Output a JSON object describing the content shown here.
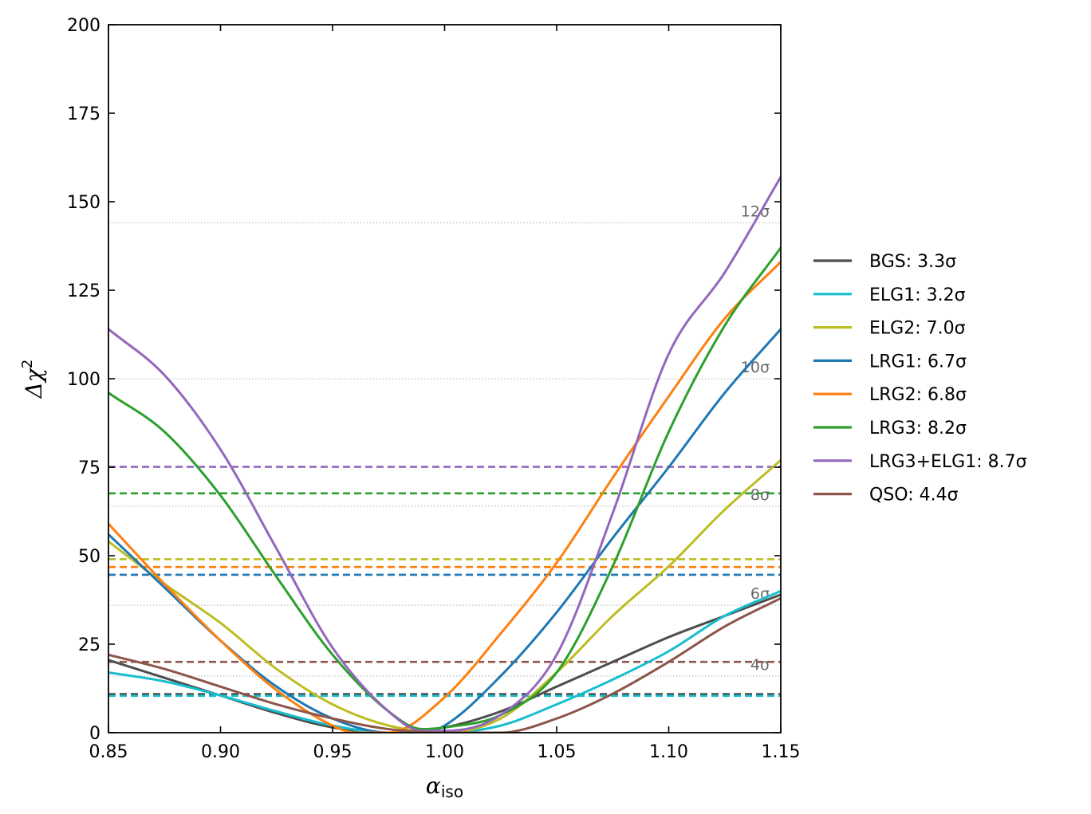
{
  "chart_data": {
    "type": "line",
    "xlabel": "α_iso",
    "xlabel_main": "α",
    "xlabel_sub": "iso",
    "ylabel": "Δχ²",
    "ylabel_main": "Δχ",
    "ylabel_sup": "2",
    "xlim": [
      0.85,
      1.15
    ],
    "ylim": [
      0,
      200
    ],
    "x_ticks": [
      "0.85",
      "0.90",
      "0.95",
      "1.00",
      "1.05",
      "1.10",
      "1.15"
    ],
    "x_tick_values": [
      0.85,
      0.9,
      0.95,
      1.0,
      1.05,
      1.1,
      1.15
    ],
    "y_ticks": [
      "0",
      "25",
      "50",
      "75",
      "100",
      "125",
      "150",
      "175",
      "200"
    ],
    "y_tick_values": [
      0,
      25,
      50,
      75,
      100,
      125,
      150,
      175,
      200
    ],
    "legend_position": "right-outside",
    "sigma_reference_lines": [
      {
        "label": "4σ",
        "value": 16
      },
      {
        "label": "6σ",
        "value": 36
      },
      {
        "label": "8σ",
        "value": 64
      },
      {
        "label": "10σ",
        "value": 100
      },
      {
        "label": "12σ",
        "value": 144
      }
    ],
    "series": [
      {
        "name": "BGS: 3.3σ",
        "color": "#4d4d4d",
        "threshold": 10.9,
        "x": [
          0.85,
          0.875,
          0.9,
          0.925,
          0.95,
          0.975,
          1.0,
          1.025,
          1.05,
          1.075,
          1.1,
          1.125,
          1.15
        ],
        "y": [
          20.5,
          15.5,
          10.5,
          5.5,
          1.5,
          0,
          1.5,
          6,
          13,
          20,
          27,
          33,
          39
        ]
      },
      {
        "name": "ELG1: 3.2σ",
        "color": "#17becf",
        "threshold": 10.4,
        "x": [
          0.85,
          0.875,
          0.9,
          0.925,
          0.95,
          0.975,
          1.0,
          1.025,
          1.05,
          1.075,
          1.1,
          1.125,
          1.15
        ],
        "y": [
          17,
          14.5,
          10.5,
          6,
          2,
          0,
          0,
          2,
          8,
          15,
          23,
          33,
          40
        ]
      },
      {
        "name": "ELG2: 7.0σ",
        "color": "#bcbd22",
        "threshold": 49,
        "x": [
          0.85,
          0.875,
          0.9,
          0.925,
          0.95,
          0.975,
          1.0,
          1.025,
          1.05,
          1.075,
          1.1,
          1.125,
          1.15
        ],
        "y": [
          54,
          42,
          31,
          18,
          8,
          2,
          0,
          4,
          17,
          33,
          47,
          63,
          77
        ]
      },
      {
        "name": "LRG1: 6.7σ",
        "color": "#1f77b4",
        "threshold": 44.6,
        "x": [
          0.85,
          0.875,
          0.9,
          0.925,
          0.95,
          0.975,
          0.99,
          1.0,
          1.025,
          1.05,
          1.075,
          1.1,
          1.125,
          1.15
        ],
        "y": [
          56,
          41,
          26,
          13,
          4,
          0,
          0,
          2,
          16,
          34,
          55,
          75,
          96,
          114
        ]
      },
      {
        "name": "LRG2: 6.8σ",
        "color": "#ff7f0e",
        "threshold": 46.8,
        "x": [
          0.85,
          0.875,
          0.9,
          0.925,
          0.95,
          0.96,
          0.975,
          1.0,
          1.025,
          1.05,
          1.075,
          1.1,
          1.125,
          1.15
        ],
        "y": [
          59,
          42,
          26,
          12,
          2,
          0,
          0,
          10,
          28,
          48,
          72,
          95,
          117,
          133
        ]
      },
      {
        "name": "LRG3: 8.2σ",
        "color": "#2ca02c",
        "threshold": 67.6,
        "x": [
          0.85,
          0.875,
          0.9,
          0.925,
          0.95,
          0.975,
          0.99,
          1.0,
          1.025,
          1.05,
          1.075,
          1.1,
          1.125,
          1.15
        ],
        "y": [
          96,
          85,
          67,
          44,
          22,
          6,
          1,
          1.5,
          5,
          17,
          47,
          85,
          115,
          137
        ]
      },
      {
        "name": "LRG3+ELG1: 8.7σ",
        "color": "#9467bd",
        "threshold": 75.1,
        "x": [
          0.85,
          0.875,
          0.9,
          0.925,
          0.95,
          0.975,
          0.99,
          1.0,
          1.025,
          1.05,
          1.075,
          1.1,
          1.125,
          1.15
        ],
        "y": [
          114,
          101,
          80,
          52,
          24,
          6,
          0.5,
          0.5,
          5,
          22,
          62,
          107,
          130,
          157
        ]
      },
      {
        "name": "QSO: 4.4σ",
        "color": "#8c564b",
        "threshold": 20,
        "x": [
          0.85,
          0.875,
          0.9,
          0.925,
          0.95,
          0.975,
          1.0,
          1.025,
          1.05,
          1.075,
          1.1,
          1.125,
          1.15
        ],
        "y": [
          22,
          18,
          13,
          8,
          4,
          1,
          0,
          0,
          4,
          11,
          20,
          30,
          38
        ]
      }
    ]
  }
}
